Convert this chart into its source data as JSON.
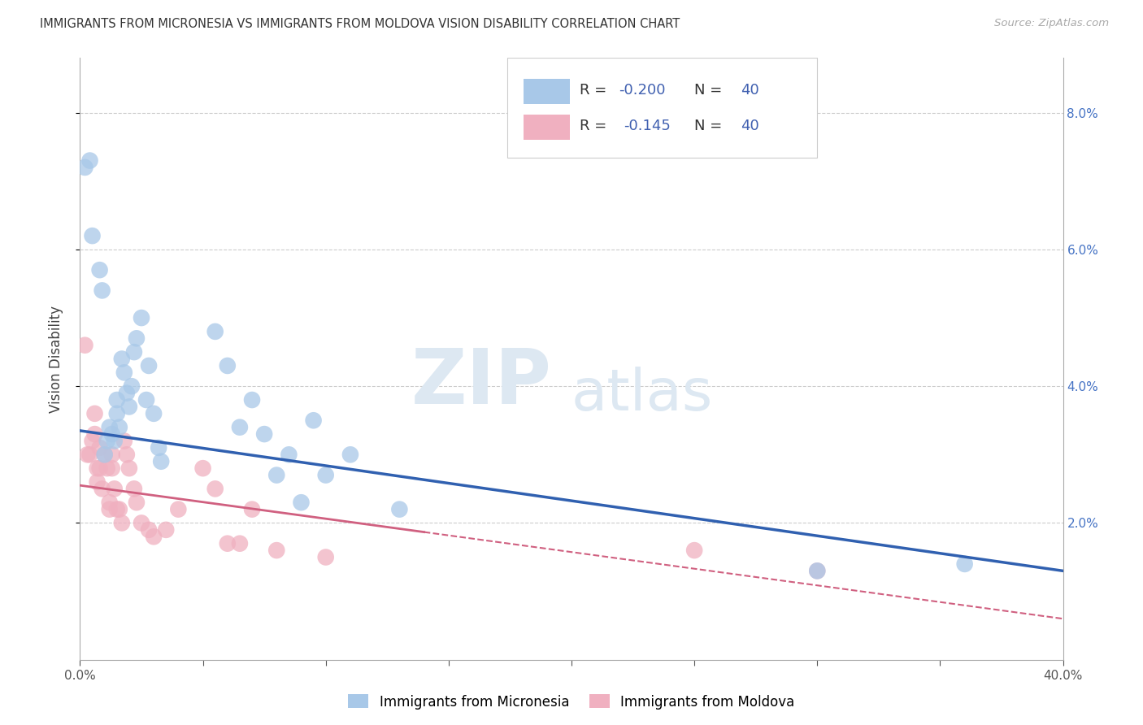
{
  "title": "IMMIGRANTS FROM MICRONESIA VS IMMIGRANTS FROM MOLDOVA VISION DISABILITY CORRELATION CHART",
  "source": "Source: ZipAtlas.com",
  "ylabel": "Vision Disability",
  "xlim": [
    0.0,
    0.4
  ],
  "ylim": [
    0.0,
    0.088
  ],
  "xticks": [
    0.0,
    0.05,
    0.1,
    0.15,
    0.2,
    0.25,
    0.3,
    0.35,
    0.4
  ],
  "yticks": [
    0.02,
    0.04,
    0.06,
    0.08
  ],
  "xticklabels": [
    "0.0%",
    "",
    "",
    "",
    "",
    "",
    "",
    "",
    "40.0%"
  ],
  "yticklabels_right": [
    "2.0%",
    "4.0%",
    "6.0%",
    "8.0%"
  ],
  "R_micronesia": -0.2,
  "N_micronesia": 40,
  "R_moldova": -0.145,
  "N_moldova": 40,
  "color_micronesia": "#a8c8e8",
  "color_moldova": "#f0b0c0",
  "line_color_micronesia": "#3060b0",
  "line_color_moldova": "#d06080",
  "watermark_zip": "ZIP",
  "watermark_atlas": "atlas",
  "line_mic_x0": 0.0,
  "line_mic_y0": 0.0335,
  "line_mic_x1": 0.4,
  "line_mic_y1": 0.013,
  "line_mol_x0": 0.0,
  "line_mol_y0": 0.0255,
  "line_mol_x1": 0.4,
  "line_mol_y1": 0.006,
  "line_mol_solid_end": 0.14,
  "micronesia_x": [
    0.002,
    0.004,
    0.005,
    0.008,
    0.009,
    0.01,
    0.011,
    0.012,
    0.013,
    0.014,
    0.015,
    0.015,
    0.016,
    0.017,
    0.018,
    0.019,
    0.02,
    0.021,
    0.022,
    0.023,
    0.025,
    0.027,
    0.028,
    0.03,
    0.032,
    0.033,
    0.055,
    0.06,
    0.065,
    0.07,
    0.075,
    0.08,
    0.085,
    0.09,
    0.095,
    0.1,
    0.11,
    0.13,
    0.3,
    0.36
  ],
  "micronesia_y": [
    0.072,
    0.073,
    0.062,
    0.057,
    0.054,
    0.03,
    0.032,
    0.034,
    0.033,
    0.032,
    0.038,
    0.036,
    0.034,
    0.044,
    0.042,
    0.039,
    0.037,
    0.04,
    0.045,
    0.047,
    0.05,
    0.038,
    0.043,
    0.036,
    0.031,
    0.029,
    0.048,
    0.043,
    0.034,
    0.038,
    0.033,
    0.027,
    0.03,
    0.023,
    0.035,
    0.027,
    0.03,
    0.022,
    0.013,
    0.014
  ],
  "moldova_x": [
    0.002,
    0.003,
    0.004,
    0.005,
    0.006,
    0.006,
    0.007,
    0.007,
    0.008,
    0.008,
    0.009,
    0.01,
    0.011,
    0.012,
    0.012,
    0.013,
    0.013,
    0.014,
    0.015,
    0.016,
    0.017,
    0.018,
    0.019,
    0.02,
    0.022,
    0.023,
    0.025,
    0.028,
    0.03,
    0.035,
    0.04,
    0.05,
    0.055,
    0.06,
    0.065,
    0.07,
    0.08,
    0.1,
    0.25,
    0.3
  ],
  "moldova_y": [
    0.046,
    0.03,
    0.03,
    0.032,
    0.036,
    0.033,
    0.028,
    0.026,
    0.031,
    0.028,
    0.025,
    0.03,
    0.028,
    0.023,
    0.022,
    0.03,
    0.028,
    0.025,
    0.022,
    0.022,
    0.02,
    0.032,
    0.03,
    0.028,
    0.025,
    0.023,
    0.02,
    0.019,
    0.018,
    0.019,
    0.022,
    0.028,
    0.025,
    0.017,
    0.017,
    0.022,
    0.016,
    0.015,
    0.016,
    0.013
  ]
}
